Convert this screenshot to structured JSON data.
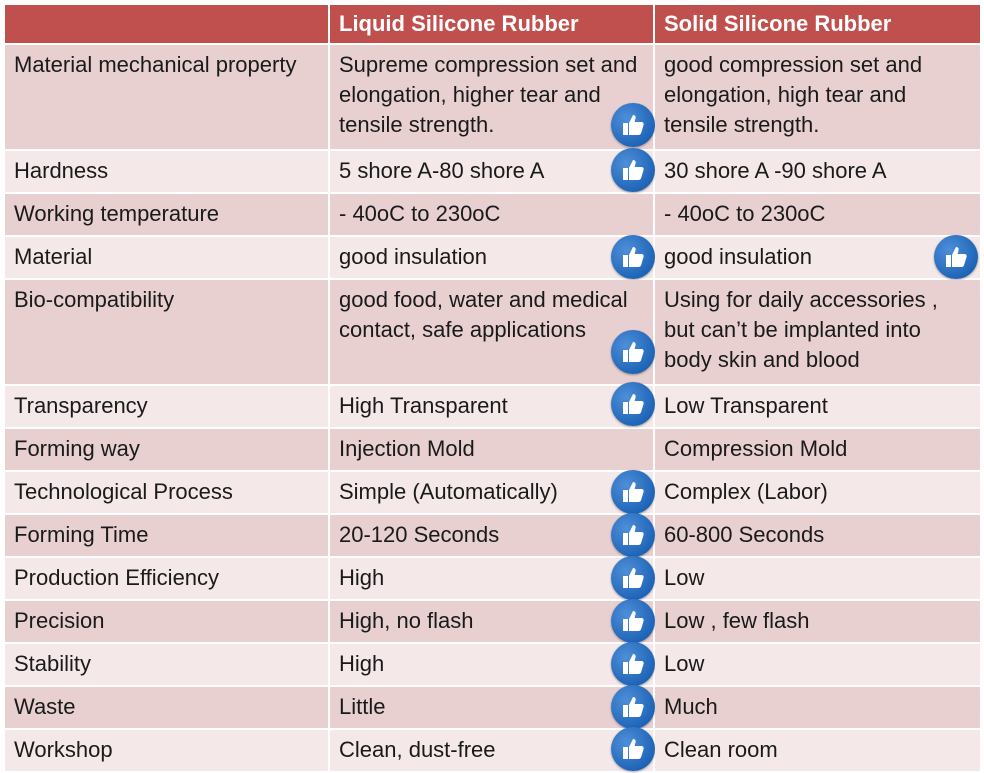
{
  "table": {
    "header": [
      "",
      "Liquid Silicone Rubber",
      "Solid Silicone Rubber"
    ],
    "rows": [
      {
        "property": "Material mechanical property",
        "liquid": "Supreme compression set and elongation, higher tear and tensile strength.",
        "solid": "good compression set and elongation, high tear and tensile strength.",
        "liquid_thumb": true,
        "solid_thumb": false
      },
      {
        "property": "Hardness",
        "liquid": "5 shore A-80 shore A",
        "solid": "30 shore A -90 shore A",
        "liquid_thumb": true,
        "solid_thumb": false
      },
      {
        "property": "Working temperature",
        "liquid": "- 40oC to 230oC",
        "solid": "- 40oC to 230oC",
        "liquid_thumb": false,
        "solid_thumb": false
      },
      {
        "property": "Material",
        "liquid": "good insulation",
        "solid": "good insulation",
        "liquid_thumb": true,
        "solid_thumb": true
      },
      {
        "property": "Bio-compatibility",
        "liquid": "good food, water and medical contact, safe applications",
        "solid": "Using for daily accessories , but can’t be implanted into body skin and blood",
        "liquid_thumb": true,
        "solid_thumb": false
      },
      {
        "property": "Transparency",
        "liquid": "High Transparent",
        "solid": "Low Transparent",
        "liquid_thumb": true,
        "solid_thumb": false
      },
      {
        "property": "Forming way",
        "liquid": "Injection Mold",
        "solid": "Compression Mold",
        "liquid_thumb": false,
        "solid_thumb": false
      },
      {
        "property": "Technological Process",
        "liquid": "Simple (Automatically)",
        "solid": "Complex (Labor)",
        "liquid_thumb": true,
        "solid_thumb": false
      },
      {
        "property": "Forming Time",
        "liquid": "20-120 Seconds",
        "solid": "60-800 Seconds",
        "liquid_thumb": true,
        "solid_thumb": false
      },
      {
        "property": "Production Efficiency",
        "liquid": "High",
        "solid": "Low",
        "liquid_thumb": true,
        "solid_thumb": false
      },
      {
        "property": "Precision",
        "liquid": "High, no flash",
        "solid": "Low , few flash",
        "liquid_thumb": true,
        "solid_thumb": false
      },
      {
        "property": "Stability",
        "liquid": "High",
        "solid": "Low",
        "liquid_thumb": true,
        "solid_thumb": false
      },
      {
        "property": "Waste",
        "liquid": "Little",
        "solid": "Much",
        "liquid_thumb": true,
        "solid_thumb": false
      },
      {
        "property": "Workshop",
        "liquid": "Clean, dust-free",
        "solid": "Clean room",
        "liquid_thumb": true,
        "solid_thumb": false
      }
    ]
  },
  "icons": {
    "approval": "thumbs-up-icon"
  },
  "colors": {
    "header": "#c0504d",
    "row_dark": "#e8d0d0",
    "row_light": "#f4e8e8",
    "thumb_blue": "#1f65b8"
  }
}
